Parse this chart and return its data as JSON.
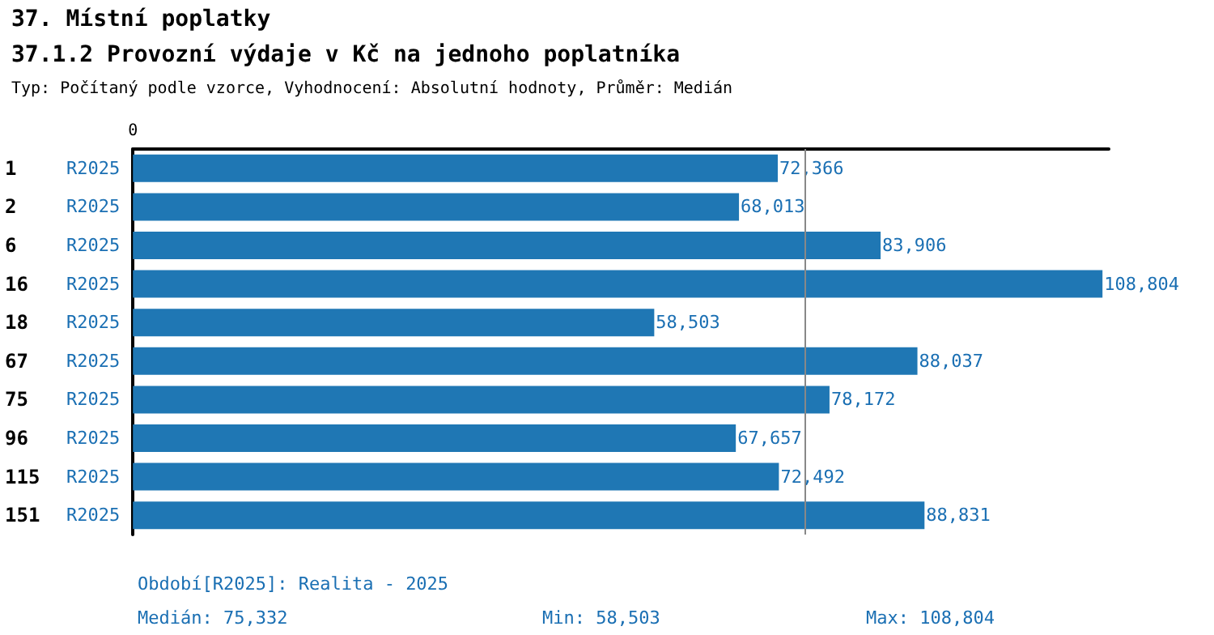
{
  "chart_data": {
    "type": "bar",
    "orientation": "horizontal",
    "title": "37. Místní poplatky",
    "subtitle": "37.1.2 Provozní výdaje v Kč na jednoho poplatníka",
    "annotations": [
      "0",
      "Typ: Počítaný podle vzorce, Vyhodnocení: Absolutní hodnoty, Průměr: Medián",
      "Období[R2025]: Realita - 2025",
      "Medián: 75,332",
      "Min: 58,503",
      "Max: 108,804"
    ],
    "categories": [
      "1",
      "2",
      "6",
      "16",
      "18",
      "67",
      "75",
      "96",
      "115",
      "151"
    ],
    "series": [
      {
        "name": "R2025",
        "color": "#1f77b4",
        "values": [
          72366,
          68013,
          83906,
          108804,
          58503,
          88037,
          78172,
          67657,
          72492,
          88831
        ],
        "value_labels": [
          "72,366",
          "68,013",
          "83,906",
          "108,804",
          "58,503",
          "88,037",
          "78,172",
          "67,657",
          "72,492",
          "88,831"
        ]
      }
    ],
    "legend": false,
    "ref_lines": [
      {
        "axis": "x",
        "value": 75332,
        "color": "#888888"
      }
    ]
  }
}
